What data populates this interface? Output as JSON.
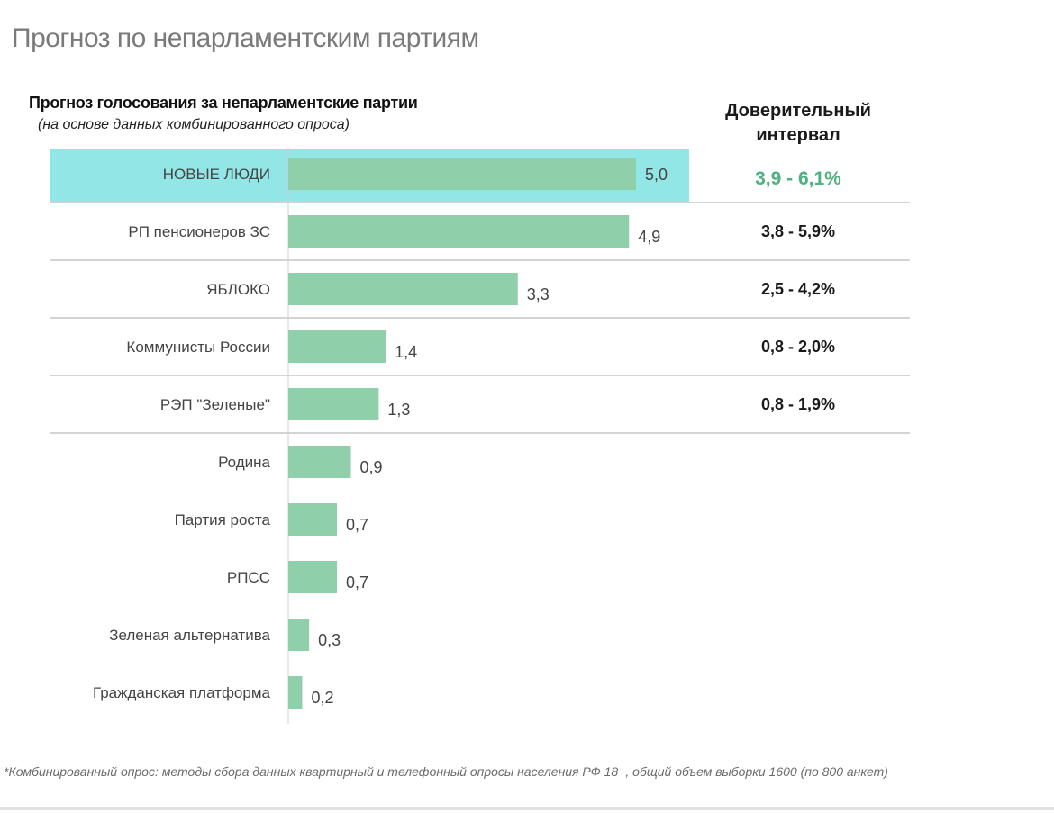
{
  "page_title": "Прогноз по непарламентским партиям",
  "footnote": "*Комбинированный опрос: методы сбора данных квартирный и телефонный опросы населения РФ 18+, общий объем выборки 1600 (по 800 анкет)",
  "chart_data": {
    "type": "bar",
    "orientation": "horizontal",
    "title": "Прогноз голосования за непарламентские партии",
    "subtitle": "(на основе данных комбинированного опроса)",
    "categories": [
      "НОВЫЕ ЛЮДИ",
      "РП пенсионеров ЗС",
      "ЯБЛОКО",
      "Коммунисты России",
      "РЭП \"Зеленые\"",
      "Родина",
      "Партия роста",
      "РПСС",
      "Зеленая альтернатива",
      "Гражданская платформа"
    ],
    "values": [
      5.0,
      4.9,
      3.3,
      1.4,
      1.3,
      0.9,
      0.7,
      0.7,
      0.3,
      0.2
    ],
    "value_labels": [
      "5,0",
      "4,9",
      "3,3",
      "1,4",
      "1,3",
      "0,9",
      "0,7",
      "0,7",
      "0,3",
      "0,2"
    ],
    "highlighted_category": "НОВЫЕ ЛЮДИ",
    "confidence_interval_header": "Доверительный интервал",
    "confidence_intervals": [
      "3,9 - 6,1%",
      "3,8 - 5,9%",
      "2,5 - 4,2%",
      "0,8 - 2,0%",
      "0,8 - 1,9%"
    ],
    "xlim": [
      0,
      5.6
    ],
    "grid": false,
    "legend": "none",
    "colors": {
      "bar": "#8fcfaa",
      "highlight_band": "#92e6e6",
      "highlight_text": "#4fb081",
      "separator": "#bbbbbb",
      "axis": "#d0d0d0"
    }
  }
}
